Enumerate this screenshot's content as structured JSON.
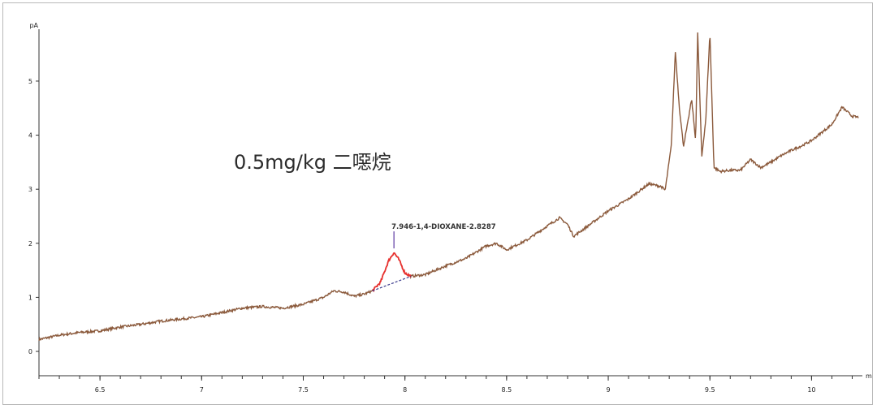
{
  "chart_data": {
    "type": "line",
    "title": "",
    "caption": "0.5mg/kg 二噁烷",
    "xlabel": "",
    "x_unit": "m",
    "ylabel": "",
    "y_unit": "pA",
    "xlim": [
      6.2,
      10.25
    ],
    "ylim": [
      -0.45,
      5.9
    ],
    "x_ticks": [
      "6.5",
      "7",
      "7.5",
      "8",
      "8.5",
      "9",
      "9.5",
      "10"
    ],
    "x_tick_values": [
      6.5,
      7,
      7.5,
      8,
      8.5,
      9,
      9.5,
      10
    ],
    "y_ticks": [
      "0",
      "1",
      "2",
      "3",
      "4",
      "5"
    ],
    "y_tick_values": [
      0,
      1,
      2,
      3,
      4,
      5
    ],
    "grid": false,
    "line_color": "#8b5a3c",
    "peak_color": "#e8312f",
    "baseline_color": "#3a3a8c",
    "marker_color": "#6a4aa8",
    "series": [
      {
        "values": [
          [
            6.2,
            0.22
          ],
          [
            6.3,
            0.3
          ],
          [
            6.4,
            0.35
          ],
          [
            6.5,
            0.38
          ],
          [
            6.6,
            0.45
          ],
          [
            6.7,
            0.5
          ],
          [
            6.8,
            0.56
          ],
          [
            6.9,
            0.6
          ],
          [
            7.0,
            0.64
          ],
          [
            7.1,
            0.72
          ],
          [
            7.2,
            0.8
          ],
          [
            7.3,
            0.83
          ],
          [
            7.4,
            0.8
          ],
          [
            7.5,
            0.87
          ],
          [
            7.6,
            1.0
          ],
          [
            7.65,
            1.12
          ],
          [
            7.7,
            1.1
          ],
          [
            7.75,
            1.02
          ],
          [
            7.8,
            1.06
          ],
          [
            7.84,
            1.12
          ],
          [
            7.88,
            1.28
          ],
          [
            7.92,
            1.68
          ],
          [
            7.946,
            1.83
          ],
          [
            7.97,
            1.7
          ],
          [
            8.0,
            1.45
          ],
          [
            8.03,
            1.39
          ],
          [
            8.1,
            1.42
          ],
          [
            8.2,
            1.58
          ],
          [
            8.3,
            1.72
          ],
          [
            8.4,
            1.95
          ],
          [
            8.45,
            2.0
          ],
          [
            8.5,
            1.88
          ],
          [
            8.6,
            2.06
          ],
          [
            8.7,
            2.32
          ],
          [
            8.76,
            2.47
          ],
          [
            8.8,
            2.35
          ],
          [
            8.83,
            2.13
          ],
          [
            8.9,
            2.32
          ],
          [
            9.0,
            2.6
          ],
          [
            9.1,
            2.82
          ],
          [
            9.2,
            3.1
          ],
          [
            9.26,
            3.05
          ],
          [
            9.28,
            2.98
          ],
          [
            9.31,
            3.8
          ],
          [
            9.33,
            5.55
          ],
          [
            9.35,
            4.5
          ],
          [
            9.37,
            3.8
          ],
          [
            9.39,
            4.2
          ],
          [
            9.41,
            4.67
          ],
          [
            9.43,
            3.9
          ],
          [
            9.44,
            5.9
          ],
          [
            9.46,
            3.6
          ],
          [
            9.48,
            4.3
          ],
          [
            9.5,
            5.9
          ],
          [
            9.52,
            3.4
          ],
          [
            9.55,
            3.33
          ],
          [
            9.6,
            3.35
          ],
          [
            9.65,
            3.35
          ],
          [
            9.7,
            3.55
          ],
          [
            9.75,
            3.4
          ],
          [
            9.8,
            3.5
          ],
          [
            9.85,
            3.62
          ],
          [
            9.9,
            3.72
          ],
          [
            9.95,
            3.8
          ],
          [
            10.0,
            3.9
          ],
          [
            10.05,
            4.05
          ],
          [
            10.1,
            4.2
          ],
          [
            10.15,
            4.52
          ],
          [
            10.2,
            4.35
          ],
          [
            10.23,
            4.33
          ]
        ]
      }
    ],
    "annotations": [
      {
        "x": 7.946,
        "y": 1.83,
        "text": "7.946-1,4-DIOXANE-2.8287",
        "peak_start": 7.84,
        "peak_end": 8.03
      }
    ]
  }
}
